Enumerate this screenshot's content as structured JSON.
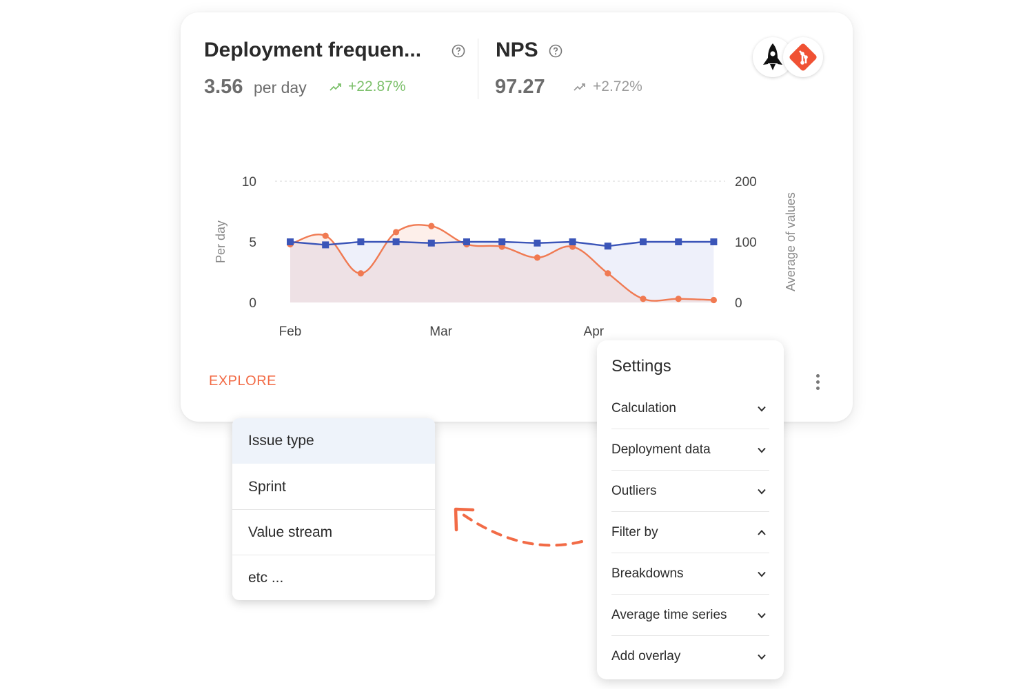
{
  "metrics": [
    {
      "title": "Deployment frequen...",
      "value": "3.56",
      "unit": "per day",
      "trend": "+22.87%",
      "trend_color": "#7cc06b"
    },
    {
      "title": "NPS",
      "value": "97.27",
      "unit": "",
      "trend": "+2.72%",
      "trend_color": "#9a9a9a"
    }
  ],
  "icons": {
    "help": "help-circle-icon",
    "trend": "trend-up-icon",
    "integration_1": "rocket-icon",
    "integration_2": "git-icon",
    "menu": "more-vertical-icon",
    "chevron": "chevron-icon"
  },
  "colors": {
    "accent": "#f26b46",
    "series_1": "#f07a52",
    "series_2": "#3b55b8"
  },
  "chart_data": {
    "type": "line",
    "x": [
      "Feb 1",
      "Feb 8",
      "Feb 15",
      "Feb 22",
      "Mar 1",
      "Mar 8",
      "Mar 15",
      "Mar 22",
      "Mar 29",
      "Apr 5",
      "Apr 12",
      "Apr 19",
      "Apr 26"
    ],
    "series": [
      {
        "axis": "left",
        "values": [
          4.8,
          5.5,
          2.4,
          5.8,
          6.3,
          4.8,
          4.6,
          3.7,
          4.6,
          2.4,
          0.3,
          0.3,
          0.2
        ]
      },
      {
        "axis": "right",
        "values": [
          100,
          95,
          100,
          100,
          98,
          100,
          100,
          98,
          100,
          93,
          100,
          100,
          100
        ]
      }
    ],
    "xticks": [
      "Feb",
      "Mar",
      "Apr"
    ],
    "ylabel": "Per day",
    "y2label": "Average of values",
    "ylim": [
      0,
      10
    ],
    "y2lim": [
      0,
      200
    ],
    "yticks": [
      "0",
      "5",
      "10"
    ],
    "y2ticks": [
      "0",
      "100",
      "200"
    ],
    "grid": "dotted at top"
  },
  "explore_label": "EXPLORE",
  "dropdown": {
    "items": [
      "Issue type",
      "Sprint",
      "Value stream",
      "etc ..."
    ],
    "active_index": 0
  },
  "settings": {
    "title": "Settings",
    "rows": [
      {
        "label": "Calculation",
        "expanded": false
      },
      {
        "label": "Deployment data",
        "expanded": false
      },
      {
        "label": "Outliers",
        "expanded": false
      },
      {
        "label": "Filter by",
        "expanded": true
      },
      {
        "label": "Breakdowns",
        "expanded": false
      },
      {
        "label": "Average time series",
        "expanded": false
      },
      {
        "label": "Add overlay",
        "expanded": false
      }
    ]
  }
}
